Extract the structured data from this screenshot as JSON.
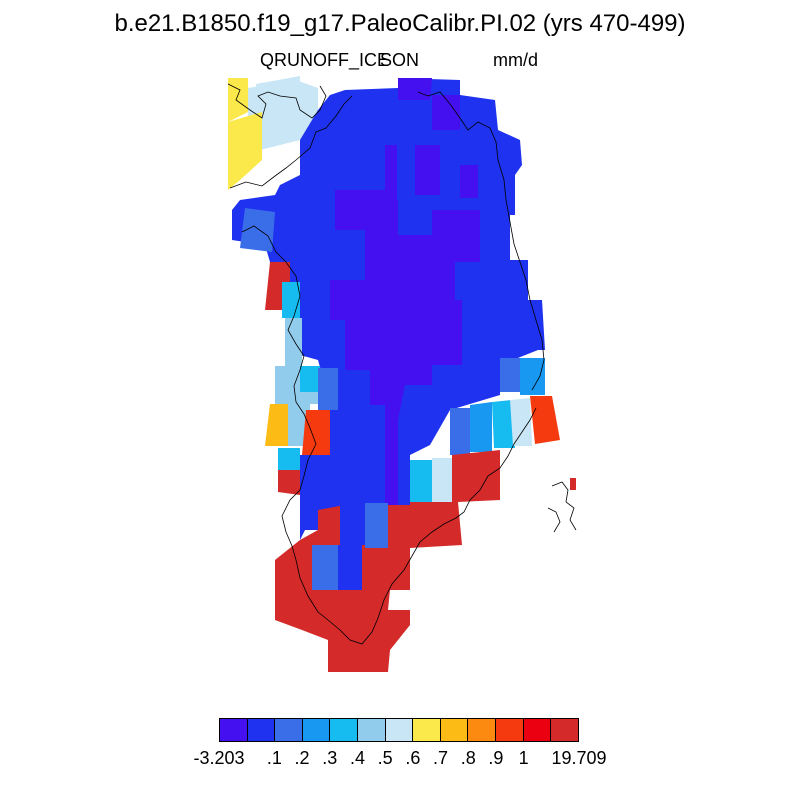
{
  "title": "b.e21.B1850.f19_g17.PaleoCalibr.PI.02 (yrs 470-499)",
  "variable": "QRUNOFF_ICE",
  "season": "SON",
  "units": "mm/d",
  "colorbar": {
    "colors": [
      "#4410f0",
      "#1e32f0",
      "#3a6ee8",
      "#1898f0",
      "#16bcf0",
      "#92ccec",
      "#c8e6f5",
      "#fbe84a",
      "#fdbb16",
      "#fd8a10",
      "#f53a10",
      "#ea0010",
      "#d42a2a"
    ],
    "labels": [
      "-3.203",
      ".1",
      ".2",
      ".3",
      ".4",
      ".5",
      ".6",
      ".7",
      ".8",
      ".9",
      "1",
      "19.709"
    ]
  },
  "chart_data": {
    "type": "heatmap",
    "region": "Greenland",
    "variable": "QRUNOFF_ICE",
    "units": "mm/d",
    "range": [
      -3.203,
      19.709
    ],
    "class_boundaries": [
      0.1,
      0.2,
      0.3,
      0.4,
      0.5,
      0.6,
      0.7,
      0.8,
      0.9,
      1
    ],
    "pattern": {
      "interior_ice_sheet": "< .1",
      "southern_tip": "> 1",
      "western_margin": ".3 to 1",
      "eastern_margin": ".2 to 1",
      "northwest_coast": ".5 to .8"
    }
  }
}
